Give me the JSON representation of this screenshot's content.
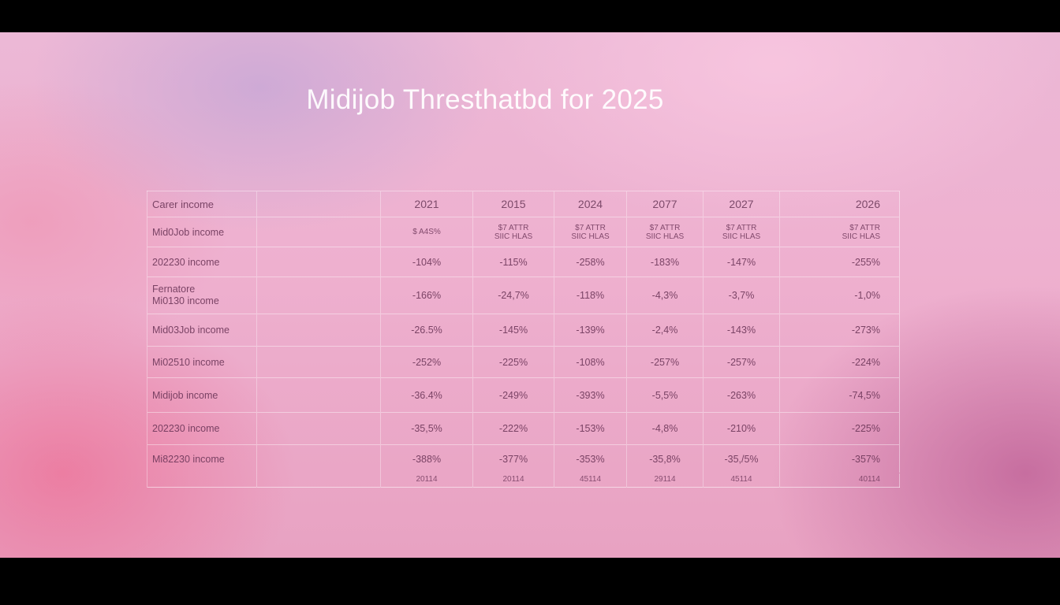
{
  "chart_data": {
    "type": "table",
    "title": "Midijob  Thresthatbd for 2025",
    "columns": [
      "Carer income",
      "",
      "2021",
      "2015",
      "2024",
      "2077",
      "2027",
      "2026"
    ],
    "subheader": {
      "label": "Mid0Job income",
      "values": [
        "$ A4S%",
        "$7 ATTR\nSIIC HLAS",
        "$7 ATTR\nSIIC HLAS",
        "$7 ATTR\nSIIC HLAS",
        "$7 ATTR\nSIIC HLAS",
        "$7 ATTR\nSIIC HLAS"
      ]
    },
    "rows": [
      {
        "label": "202230 income",
        "values": [
          "-104%",
          "-115%",
          "-258%",
          "-183%",
          "-147%",
          "-255%"
        ]
      },
      {
        "label": "Fernatore\nMi0130 income",
        "values": [
          "-166%",
          "-24,7%",
          "-118%",
          "-4,3%",
          "-3,7%",
          "-1,0%"
        ]
      },
      {
        "label": "Mid03Job income",
        "values": [
          "-26.5%",
          "-145%",
          "-139%",
          "-2,4%",
          "-143%",
          "-273%"
        ]
      },
      {
        "label": "Mi02510 income",
        "values": [
          "-252%",
          "-225%",
          "-108%",
          "-257%",
          "-257%",
          "-224%"
        ]
      },
      {
        "label": "Midijob income",
        "values": [
          "-36.4%",
          "-249%",
          "-393%",
          "-5,5%",
          "-263%",
          "-74,5%"
        ]
      },
      {
        "label": "202230 income",
        "values": [
          "-35,5%",
          "-222%",
          "-153%",
          "-4,8%",
          "-210%",
          "-225%"
        ]
      },
      {
        "label": "Mi82230 income",
        "values": [
          "-388%",
          "-377%",
          "-353%",
          "-35,8%",
          "-35,/5%",
          "-357%"
        ]
      }
    ],
    "footer": [
      "20114",
      "20114",
      "45114",
      "29114",
      "45114",
      "40114"
    ]
  }
}
